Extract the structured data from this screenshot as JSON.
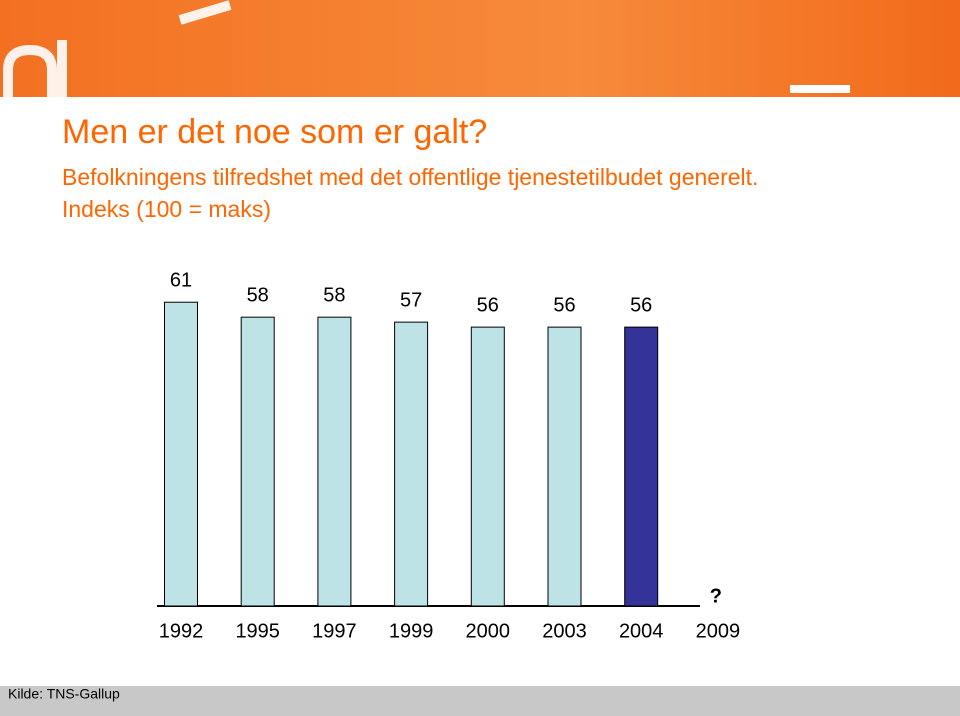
{
  "chart_data": {
    "type": "bar",
    "title": "Men er det noe som er galt?",
    "subtitle": [
      "Befolkningens tilfredshet med det offentlige tjenestetilbudet generelt.",
      "Indeks (100 = maks)"
    ],
    "categories": [
      "1992",
      "1995",
      "1997",
      "1999",
      "2000",
      "2003",
      "2004",
      "2009"
    ],
    "values": [
      61,
      58,
      58,
      57,
      56,
      56,
      56,
      null
    ],
    "colors": [
      "#bde3e6",
      "#bde3e6",
      "#bde3e6",
      "#bde3e6",
      "#bde3e6",
      "#bde3e6",
      "#333399",
      "#bde3e6"
    ],
    "annotation": "?",
    "source": "Kilde: TNS-Gallup"
  }
}
